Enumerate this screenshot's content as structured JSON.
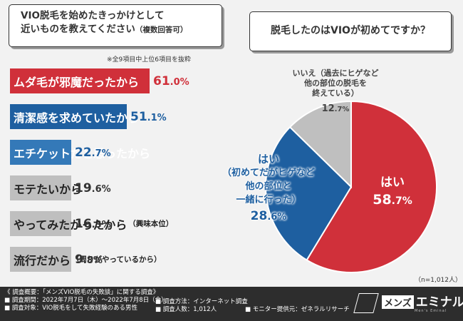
{
  "left_title": {
    "line1": "VIO脱毛を始めたきっかけとして",
    "line2": "近いものを教えてください",
    "line2_small": "（複数回答可）"
  },
  "note": "※全9項目中上位6項目を抜粋",
  "right_title": "脱毛したのはVIOが初めてですか？",
  "n_note": "（n=1,012人）",
  "colors": {
    "red": "#d0303a",
    "blue": "#1e5fa0",
    "lightblue": "#3479b8",
    "gray": "#bfbfbf",
    "dark": "#2d2d2d"
  },
  "chart_data": [
    {
      "type": "bar",
      "title": "VIO脱毛を始めたきっかけとして近いものを教えてください（複数回答可）",
      "categories": [
        "ムダ毛が邪魔だったから",
        "清潔感を求めていたから",
        "エチケットだと思ったから",
        "モテたいから",
        "やってみたかったから（興味本位）",
        "流行だから（周りがやっているから）"
      ],
      "bars": [
        {
          "label": "ムダ毛が邪魔だったから",
          "sub": "",
          "value": 61.0,
          "int": "61",
          "dec": ".0%"
        },
        {
          "label": "清潔感を求めていたから",
          "sub": "",
          "value": 51.1,
          "int": "51",
          "dec": ".1%"
        },
        {
          "label": "エチケットだと思ったから",
          "sub": "",
          "value": 22.7,
          "int": "22",
          "dec": ".7%"
        },
        {
          "label": "モテたいから",
          "sub": "",
          "value": 19.6,
          "int": "19",
          "dec": ".6%"
        },
        {
          "label": "やってみたかったから",
          "sub": "（興味本位）",
          "value": 16.3,
          "int": "16",
          "dec": ".3%"
        },
        {
          "label": "流行だから",
          "sub": "（周りがやっているから）",
          "value": 9.8,
          "int": "9",
          "dec": ".8%"
        }
      ],
      "unit": "%"
    },
    {
      "type": "pie",
      "title": "脱毛したのはVIOが初めてですか？",
      "slices": [
        {
          "name": "はい",
          "value": 58.7,
          "lines": [
            "はい"
          ],
          "int": "58",
          "dec": ".7%"
        },
        {
          "name": "はい（初めてだがヒゲなど他の部位と一緒に行った）",
          "value": 28.6,
          "lines": [
            "はい",
            "（初めてだがヒゲなど",
            "他の部位と",
            "一緒に行った）"
          ],
          "int": "28",
          "dec": ".6%"
        },
        {
          "name": "いいえ（過去にヒゲなど他の部位の脱毛を終えている）",
          "value": 12.7,
          "lines": [
            "いいえ（過去にヒゲなど",
            "他の部位の脱毛を",
            "終えている）"
          ],
          "int": "12",
          "dec": ".7%"
        }
      ],
      "unit": "%",
      "n": "1,012"
    }
  ],
  "footer": {
    "overview": "《 調査概要：「メンズVIO脱毛の失敗談」に関する調査》",
    "period": "■ 調査期間：2022年7月7日（木）〜2022年7月8日（金）",
    "target": "■ 調査対象：VIO脱毛をして失敗経験のある男性",
    "method": "■ 調査方法：インターネット調査",
    "count": "■ 調査人数：1,012人",
    "provider": "■ モニター提供元：ゼネラルリサーチ",
    "logo_box": "メンズ",
    "logo_main": "エミナル",
    "logo_sub": "Men's Eminal"
  }
}
